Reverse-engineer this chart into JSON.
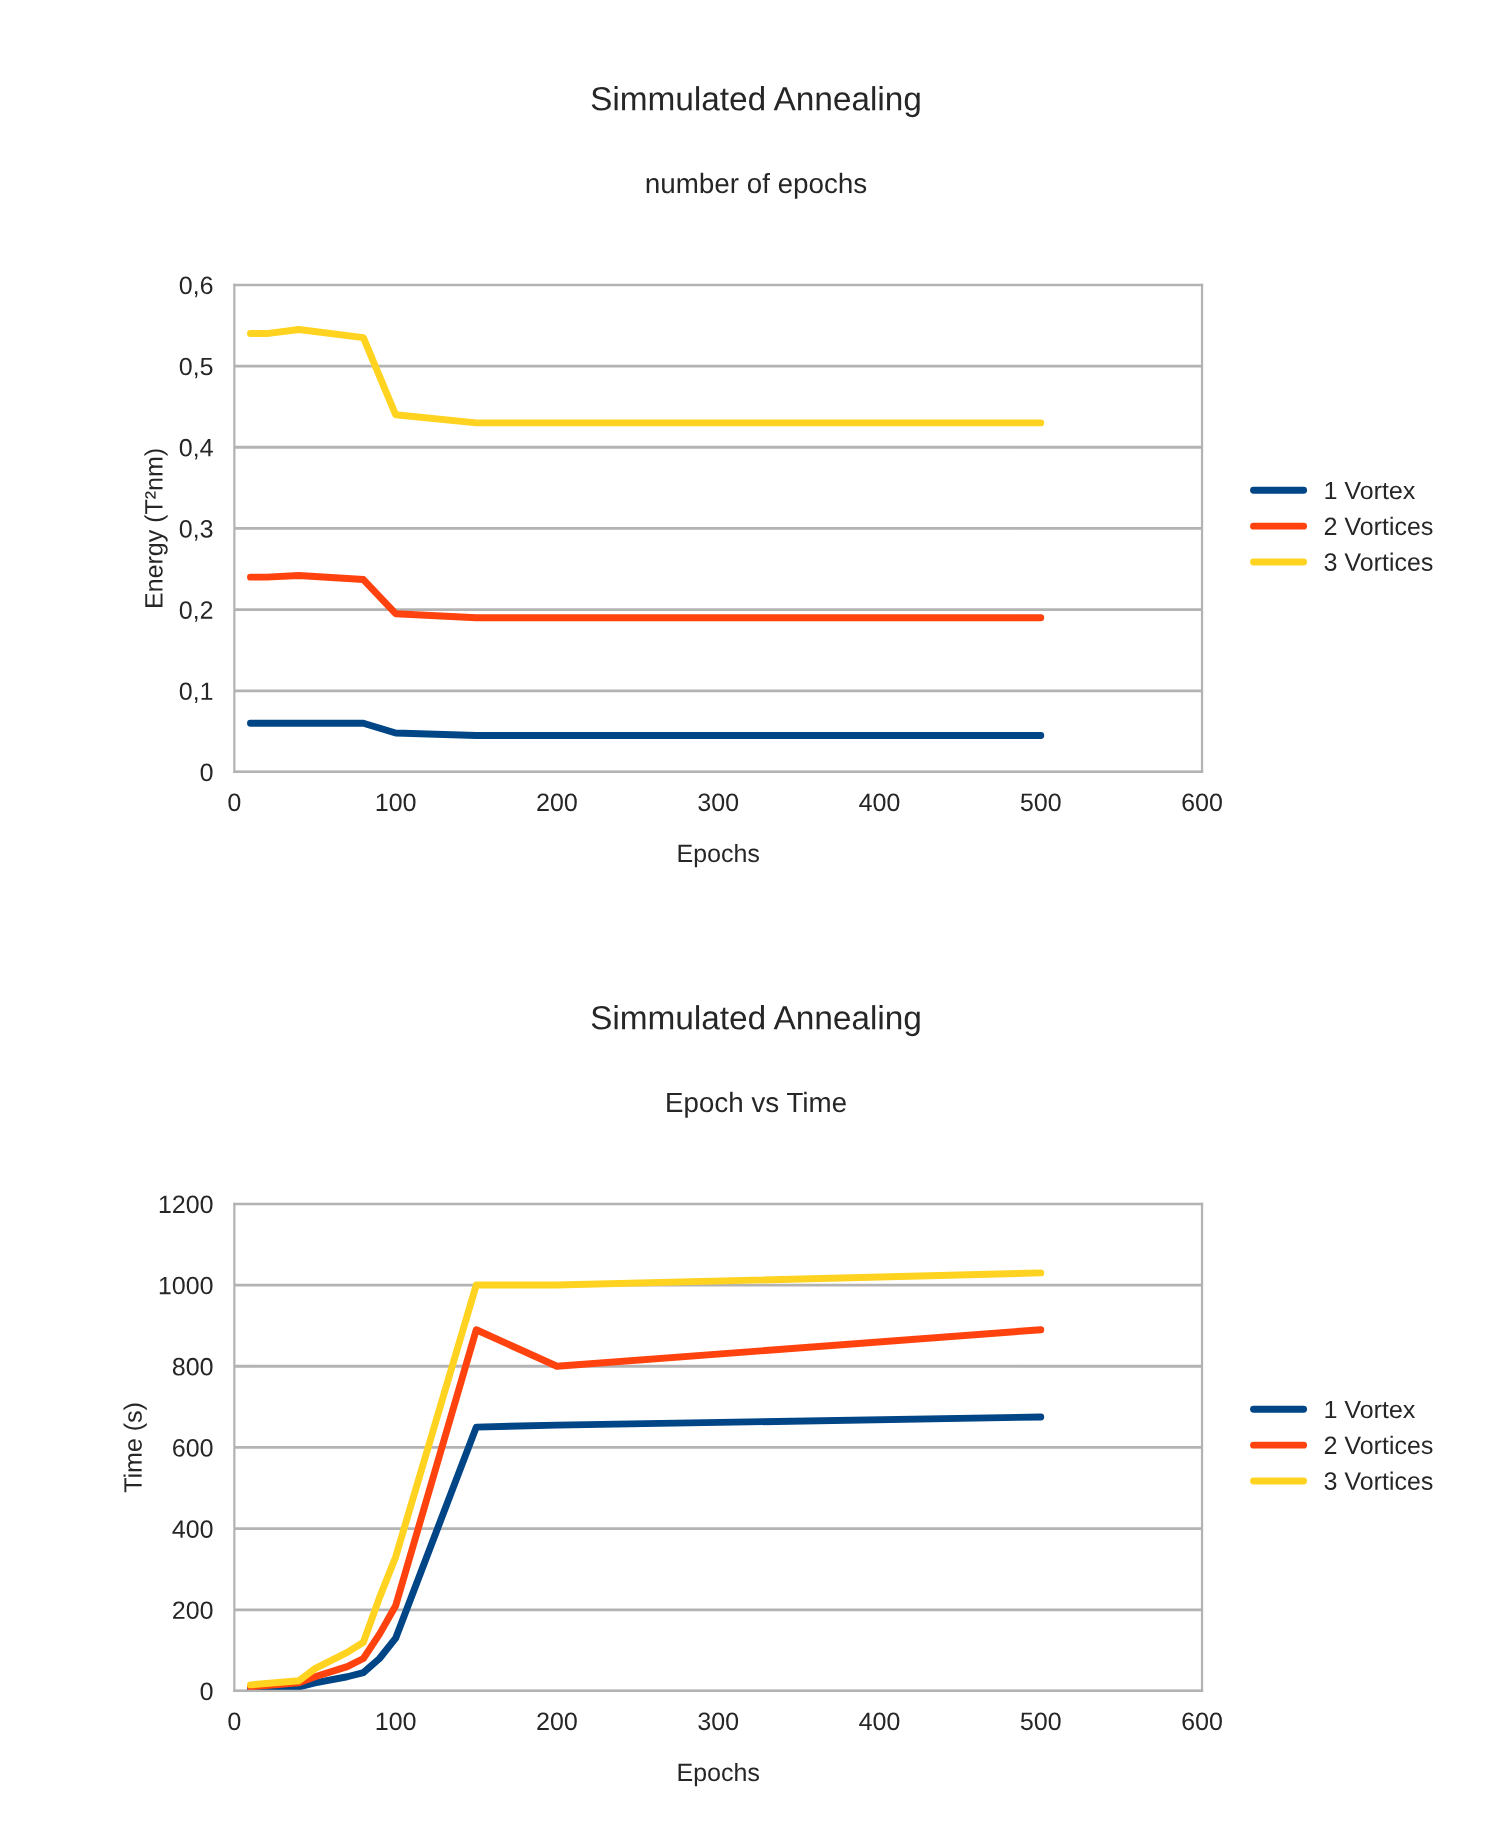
{
  "chart_data": [
    {
      "type": "line",
      "title": "Simmulated Annealing",
      "subtitle": "number of epochs",
      "xlabel": "Epochs",
      "ylabel": "Energy (T²nm)",
      "x": [
        10,
        20,
        40,
        80,
        100,
        150,
        200,
        500
      ],
      "series": [
        {
          "name": "1 Vortex",
          "color": "#004586",
          "values": [
            0.06,
            0.06,
            0.06,
            0.06,
            0.048,
            0.045,
            0.045,
            0.045
          ]
        },
        {
          "name": "2 Vortices",
          "color": "#ff420e",
          "values": [
            0.24,
            0.24,
            0.242,
            0.237,
            0.195,
            0.19,
            0.19,
            0.19
          ]
        },
        {
          "name": "3 Vortices",
          "color": "#ffd320",
          "values": [
            0.54,
            0.54,
            0.545,
            0.535,
            0.44,
            0.43,
            0.43,
            0.43
          ]
        }
      ],
      "xlim": [
        0,
        600
      ],
      "xticks": [
        0,
        100,
        200,
        300,
        400,
        500,
        600
      ],
      "ylim": [
        0,
        0.6
      ],
      "yticks": [
        {
          "value": 0,
          "label": "0"
        },
        {
          "value": 0.1,
          "label": "0,1"
        },
        {
          "value": 0.2,
          "label": "0,2"
        },
        {
          "value": 0.3,
          "label": "0,3"
        },
        {
          "value": 0.4,
          "label": "0,4"
        },
        {
          "value": 0.5,
          "label": "0,5"
        },
        {
          "value": 0.6,
          "label": "0,6"
        }
      ],
      "grid": "y",
      "legend": "right",
      "marker": "none",
      "line_style": "solid"
    },
    {
      "type": "line",
      "title": "Simmulated Annealing",
      "subtitle": "Epoch vs Time",
      "xlabel": "Epochs",
      "ylabel": "Time (s)",
      "x": [
        10,
        40,
        50,
        70,
        80,
        90,
        100,
        150,
        200,
        500
      ],
      "series": [
        {
          "name": "1 Vortex",
          "color": "#004586",
          "values": [
            5,
            10,
            20,
            35,
            45,
            80,
            130,
            650,
            655,
            675
          ]
        },
        {
          "name": "2 Vortices",
          "color": "#ff420e",
          "values": [
            10,
            20,
            35,
            60,
            80,
            140,
            210,
            890,
            800,
            890
          ]
        },
        {
          "name": "3 Vortices",
          "color": "#ffd320",
          "values": [
            15,
            25,
            55,
            95,
            120,
            230,
            330,
            1000,
            1000,
            1030
          ]
        }
      ],
      "xlim": [
        0,
        600
      ],
      "xticks": [
        0,
        100,
        200,
        300,
        400,
        500,
        600
      ],
      "ylim": [
        0,
        1200
      ],
      "yticks": [
        0,
        200,
        400,
        600,
        800,
        1000,
        1200
      ],
      "grid": "y",
      "legend": "right",
      "marker": "none",
      "line_style": "solid"
    }
  ]
}
